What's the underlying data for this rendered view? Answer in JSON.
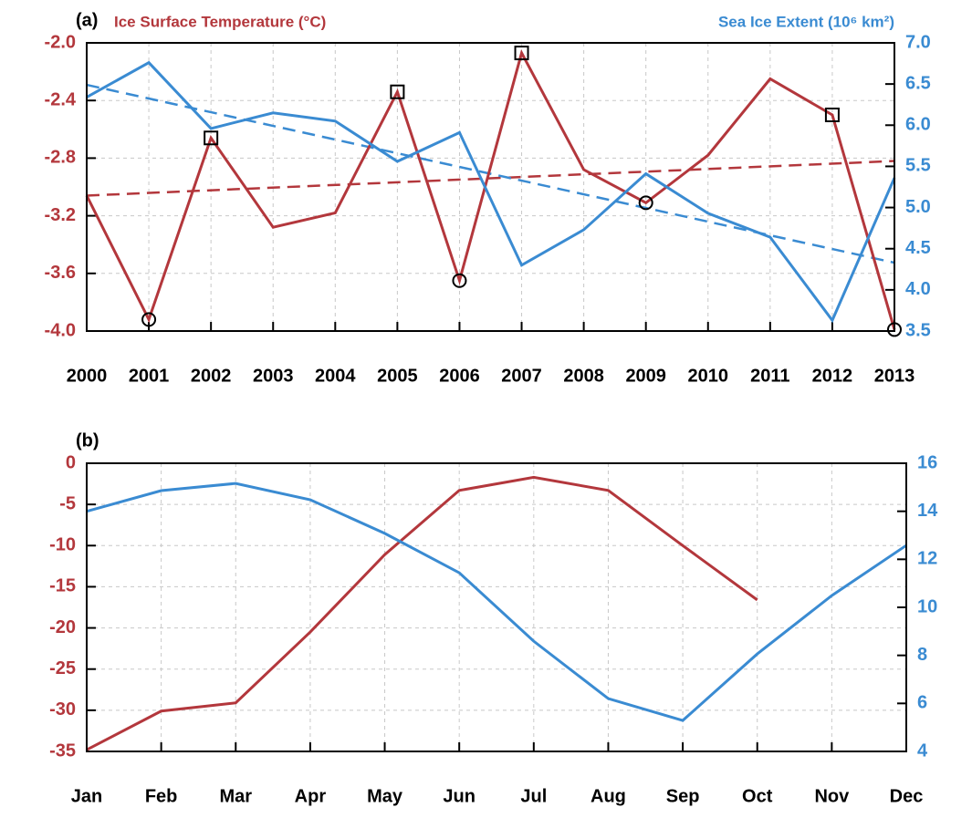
{
  "chart_data": [
    {
      "type": "line",
      "panel_label": "(a)",
      "x": [
        2000,
        2001,
        2002,
        2003,
        2004,
        2005,
        2006,
        2007,
        2008,
        2009,
        2010,
        2011,
        2012,
        2013
      ],
      "xlim": [
        2000,
        2013
      ],
      "series": [
        {
          "name": "Ice Surface Temperature (°C)",
          "color": "#b3373c",
          "axis": "y",
          "values": [
            -3.06,
            -3.92,
            -2.66,
            -3.28,
            -3.18,
            -2.34,
            -3.65,
            -2.07,
            -2.88,
            -3.11,
            -2.78,
            -2.25,
            -2.5,
            -3.99
          ],
          "trend": [
            -3.06,
            -2.82
          ]
        },
        {
          "name": "Sea Ice Extent (10⁶ km²)",
          "color": "#3a8bd2",
          "axis": "y2",
          "values": [
            6.34,
            6.76,
            5.96,
            6.15,
            6.05,
            5.56,
            5.91,
            4.3,
            4.73,
            5.41,
            4.93,
            4.64,
            3.63,
            5.36
          ],
          "trend": [
            6.49,
            4.33
          ]
        }
      ],
      "square_years": [
        2002,
        2005,
        2007,
        2012
      ],
      "circle_years": [
        2001,
        2006,
        2009,
        2013
      ],
      "ylim": [
        -4.0,
        -2.0
      ],
      "yticks": [
        {
          "value": -4.0,
          "label": "-4.0"
        },
        -3.6,
        -3.2,
        -2.8,
        -2.4,
        {
          "value": -2.0,
          "label": "-2.0"
        }
      ],
      "y2lim": [
        3.5,
        7.0
      ],
      "y2ticks": [
        3.5,
        {
          "value": 4.0,
          "label": "4.0"
        },
        4.5,
        {
          "value": 5.0,
          "label": "5.0"
        },
        5.5,
        {
          "value": 6.0,
          "label": "6.0"
        },
        6.5,
        {
          "value": 7.0,
          "label": "7.0"
        }
      ],
      "grid": true
    },
    {
      "type": "line",
      "panel_label": "(b)",
      "categories": [
        "Jan",
        "Feb",
        "Mar",
        "Apr",
        "May",
        "Jun",
        "Jul",
        "Aug",
        "Sep",
        "Oct",
        "Nov",
        "Dec"
      ],
      "series": [
        {
          "color": "#b3373c",
          "axis": "y",
          "values": [
            -34.8,
            -30.1,
            -29.1,
            -20.5,
            -11.1,
            -3.3,
            -1.7,
            -3.3,
            -10.0,
            -16.6,
            null,
            null
          ]
        },
        {
          "color": "#3a8bd2",
          "axis": "y2",
          "values": [
            14.0,
            14.86,
            15.16,
            14.48,
            13.08,
            11.44,
            8.59,
            6.2,
            5.29,
            8.06,
            10.49,
            12.58
          ]
        }
      ],
      "ylim": [
        -35,
        0
      ],
      "yticks": [
        -35,
        -30,
        -25,
        -20,
        -15,
        -10,
        -5,
        0
      ],
      "y2lim": [
        4,
        16
      ],
      "y2ticks": [
        4,
        6,
        8,
        10,
        12,
        14,
        16
      ],
      "grid": true
    }
  ]
}
